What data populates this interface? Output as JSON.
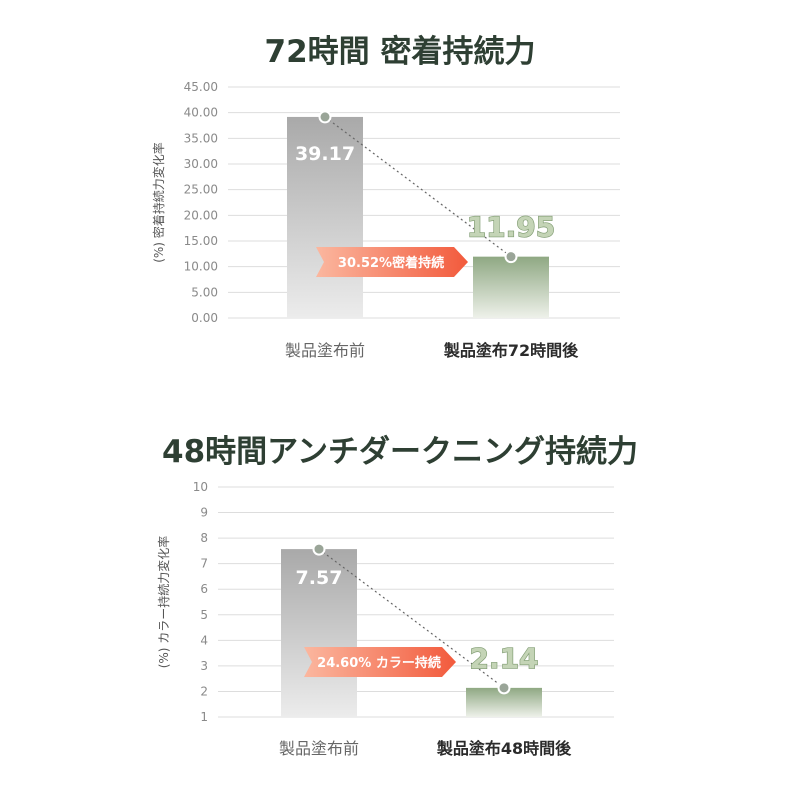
{
  "chart_data": [
    {
      "type": "bar",
      "title": "72時間 密着持続力",
      "ylabel": "(%) 密着持続力変化率",
      "ylim": [
        0,
        45
      ],
      "ytick_labels": [
        "0.00",
        "5.00",
        "10.00",
        "15.00",
        "20.00",
        "25.00",
        "30.00",
        "35.00",
        "40.00",
        "45.00"
      ],
      "categories": [
        "製品塗布前",
        "製品塗布72時間後"
      ],
      "values": [
        39.17,
        11.95
      ],
      "value_labels": [
        "39.17",
        "11.95"
      ],
      "annotation": "30.52%密着持続",
      "grid": true
    },
    {
      "type": "bar",
      "title": "48時間アンチダークニング持続力",
      "ylabel": "(%) カラー持続力変化率",
      "ylim": [
        1,
        10
      ],
      "ytick_labels": [
        "1",
        "2",
        "3",
        "4",
        "5",
        "6",
        "7",
        "8",
        "9",
        "10"
      ],
      "categories": [
        "製品塗布前",
        "製品塗布48時間後"
      ],
      "values": [
        7.57,
        2.14
      ],
      "value_labels": [
        "7.57",
        "2.14"
      ],
      "annotation": "24.60% カラー持続",
      "grid": true
    }
  ],
  "colors": {
    "title": "#2e3f33",
    "bar_before_top": "#a9a9a9",
    "bar_before_bottom": "#ececec",
    "bar_after_top": "#8fa883",
    "bar_after_bottom": "#eef1ea",
    "arrow_start": "#fbb79f",
    "arrow_end": "#f25a3c",
    "point": "#9aa598"
  }
}
